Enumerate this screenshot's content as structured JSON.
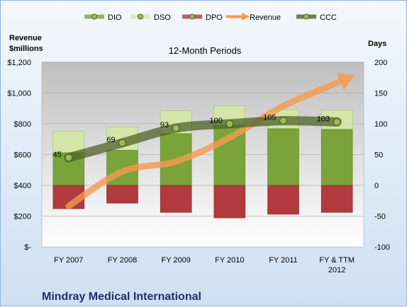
{
  "chart_data": {
    "type": "bar",
    "subtitle": "12-Month Periods",
    "company": "Mindray Medical International",
    "left_axis_label_line1": "Revenue",
    "left_axis_label_line2": "$millions",
    "right_axis_label": "Days",
    "categories": [
      "FY 2007",
      "FY 2008",
      "FY 2009",
      "FY 2010",
      "FY 2011",
      "FY & TTM 2012"
    ],
    "category_lines": [
      [
        "FY 2007"
      ],
      [
        "FY 2008"
      ],
      [
        "FY 2009"
      ],
      [
        "FY 2010"
      ],
      [
        "FY 2011"
      ],
      [
        "FY & TTM",
        "2012"
      ]
    ],
    "left_ylim": [
      0,
      1200
    ],
    "left_ticks": [
      0,
      200,
      400,
      600,
      800,
      1000,
      1200
    ],
    "left_tick_labels": [
      "$-",
      "$200",
      "$400",
      "$600",
      "$800",
      "$1,000",
      "$1,200"
    ],
    "right_ylim": [
      -100,
      200
    ],
    "right_ticks": [
      -100,
      -50,
      0,
      50,
      100,
      150,
      200
    ],
    "series": [
      {
        "name": "DIO",
        "axis": "right",
        "kind": "stacked-bar",
        "values": [
          53,
          57,
          84,
          98,
          92,
          91
        ],
        "color": "#7aa33a"
      },
      {
        "name": "DSO",
        "axis": "right",
        "kind": "stacked-bar",
        "values": [
          35,
          38,
          37,
          31,
          31,
          31
        ],
        "color": "#d3e6a8"
      },
      {
        "name": "DPO",
        "axis": "right",
        "kind": "stacked-bar-negative",
        "values": [
          -38,
          -29,
          -44,
          -53,
          -47,
          -44
        ],
        "color": "#b13a3e"
      },
      {
        "name": "Revenue",
        "axis": "left",
        "kind": "arrow-line",
        "values": [
          265,
          490,
          555,
          710,
          915,
          1065
        ],
        "color": "#f59a50"
      },
      {
        "name": "CCC",
        "axis": "right",
        "kind": "line",
        "values": [
          45,
          69,
          93,
          100,
          105,
          103
        ],
        "labels": [
          "45",
          "69",
          "93",
          "100",
          "105",
          "103"
        ],
        "color": "#4f6228"
      }
    ],
    "legend": [
      "DIO",
      "DSO",
      "DPO",
      "Revenue",
      "CCC"
    ],
    "legend_position": "top",
    "grid": true
  }
}
